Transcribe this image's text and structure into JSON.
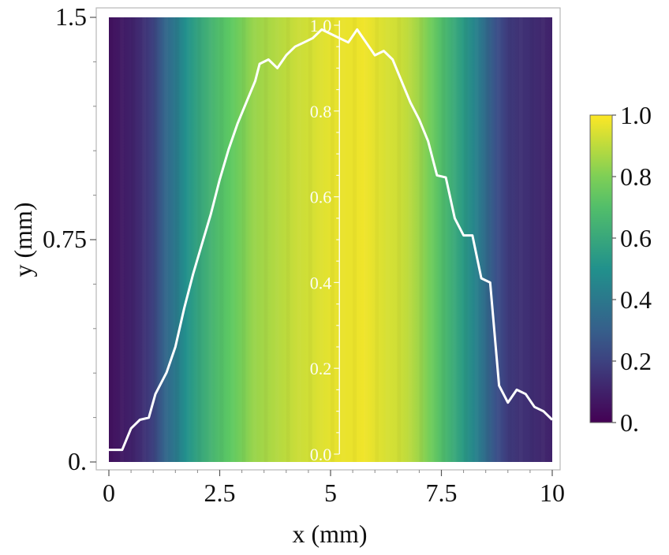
{
  "chart_data": {
    "type": "heatmap",
    "xlabel": "x (mm)",
    "ylabel": "y (mm)",
    "xlim": [
      0,
      10
    ],
    "ylim": [
      0,
      1.5
    ],
    "x_ticks": [
      {
        "value": 0,
        "label": "0"
      },
      {
        "value": 2.5,
        "label": "2.5"
      },
      {
        "value": 5,
        "label": "5"
      },
      {
        "value": 7.5,
        "label": "7.5"
      },
      {
        "value": 10,
        "label": "10"
      }
    ],
    "y_ticks": [
      {
        "value": 0,
        "label": "0."
      },
      {
        "value": 0.75,
        "label": "0.75"
      },
      {
        "value": 1.5,
        "label": "1.5"
      }
    ],
    "colorbar": {
      "colormap": "viridis",
      "range": [
        0,
        1
      ],
      "ticks": [
        {
          "value": 0,
          "label": "0."
        },
        {
          "value": 0.2,
          "label": "0.2"
        },
        {
          "value": 0.4,
          "label": "0.4"
        },
        {
          "value": 0.6,
          "label": "0.6"
        },
        {
          "value": 0.8,
          "label": "0.8"
        },
        {
          "value": 1.0,
          "label": "1.0"
        }
      ]
    },
    "colormap_stops": [
      "#440154",
      "#3b528b",
      "#21918c",
      "#5ec962",
      "#fde725"
    ],
    "heatmap_intensity_profile": {
      "x": [
        0.0,
        0.25,
        0.5,
        0.75,
        1.0,
        1.25,
        1.5,
        1.75,
        2.0,
        2.25,
        2.5,
        2.75,
        3.0,
        3.25,
        3.5,
        3.75,
        4.0,
        4.25,
        4.5,
        4.75,
        5.0,
        5.25,
        5.5,
        5.75,
        6.0,
        6.25,
        6.5,
        6.75,
        7.0,
        7.25,
        7.5,
        7.75,
        8.0,
        8.25,
        8.5,
        8.75,
        9.0,
        9.25,
        9.5,
        9.75,
        10.0
      ],
      "value": [
        0.05,
        0.07,
        0.1,
        0.14,
        0.2,
        0.32,
        0.4,
        0.5,
        0.58,
        0.64,
        0.7,
        0.75,
        0.79,
        0.84,
        0.86,
        0.88,
        0.9,
        0.92,
        0.93,
        0.95,
        0.96,
        0.97,
        0.97,
        0.98,
        0.96,
        0.94,
        0.93,
        0.9,
        0.85,
        0.78,
        0.7,
        0.62,
        0.54,
        0.45,
        0.35,
        0.24,
        0.18,
        0.15,
        0.14,
        0.12,
        0.1
      ]
    },
    "overlay_line": {
      "name": "intensity profile",
      "color": "#ffffff",
      "axis_label_ticks": [
        {
          "value": 0.0,
          "label": "0.0"
        },
        {
          "value": 0.2,
          "label": "0.2"
        },
        {
          "value": 0.4,
          "label": "0.4"
        },
        {
          "value": 0.6,
          "label": "0.6"
        },
        {
          "value": 0.8,
          "label": "0.8"
        },
        {
          "value": 1.0,
          "label": "1.0"
        }
      ],
      "axis_at_x": 5.2,
      "x": [
        0.0,
        0.3,
        0.5,
        0.7,
        0.9,
        1.05,
        1.3,
        1.5,
        1.7,
        1.9,
        2.1,
        2.3,
        2.5,
        2.7,
        2.9,
        3.1,
        3.3,
        3.4,
        3.6,
        3.8,
        4.0,
        4.2,
        4.4,
        4.6,
        4.8,
        5.0,
        5.2,
        5.4,
        5.6,
        5.8,
        6.0,
        6.2,
        6.4,
        6.6,
        6.8,
        7.0,
        7.2,
        7.4,
        7.6,
        7.8,
        8.0,
        8.2,
        8.4,
        8.6,
        8.8,
        9.0,
        9.2,
        9.4,
        9.6,
        9.8,
        10.0
      ],
      "y": [
        0.01,
        0.01,
        0.06,
        0.08,
        0.085,
        0.14,
        0.19,
        0.25,
        0.34,
        0.42,
        0.49,
        0.56,
        0.64,
        0.71,
        0.77,
        0.82,
        0.87,
        0.91,
        0.92,
        0.9,
        0.93,
        0.95,
        0.96,
        0.97,
        0.99,
        0.98,
        0.97,
        0.96,
        0.99,
        0.96,
        0.93,
        0.94,
        0.92,
        0.87,
        0.82,
        0.78,
        0.73,
        0.65,
        0.645,
        0.55,
        0.51,
        0.51,
        0.41,
        0.4,
        0.16,
        0.12,
        0.15,
        0.14,
        0.11,
        0.1,
        0.08
      ]
    }
  }
}
